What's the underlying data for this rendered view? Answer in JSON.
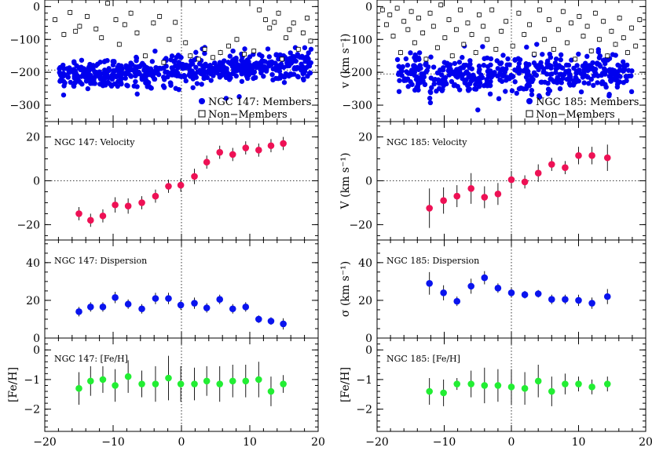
{
  "colors": {
    "members": "#0000ee",
    "velocity": "#ee1155",
    "dispersion": "#0a14ee",
    "metallicity": "#22ee33",
    "errorbar": "#000000",
    "axis": "#000000"
  },
  "x_ticks": [
    "−20",
    "−10",
    "0",
    "10",
    "20"
  ],
  "chart_data": [
    {
      "type": "scatter",
      "galaxy": "NGC 147",
      "panel": "radial-velocity",
      "ylabel": "",
      "xlim": [
        -20,
        20
      ],
      "ylim": [
        -350,
        20
      ],
      "yticks": [
        0,
        -100,
        -200,
        -300
      ],
      "legend": [
        "NGC 147: Members",
        "Non−Members"
      ],
      "legend_position": "bottom-right",
      "member_band": {
        "xmin": -18,
        "xmax": 19,
        "center": -193,
        "spread": 22,
        "slope": 0.9,
        "count": 620
      },
      "nonmember_points": [
        [
          -18.5,
          -40
        ],
        [
          -17.2,
          -85
        ],
        [
          -16.3,
          -18
        ],
        [
          -15.5,
          -75
        ],
        [
          -14.9,
          -60
        ],
        [
          -13.8,
          -30
        ],
        [
          -12.5,
          -68
        ],
        [
          -11.7,
          -95
        ],
        [
          -10.8,
          10
        ],
        [
          -9.6,
          -40
        ],
        [
          -9.1,
          -115
        ],
        [
          -8.3,
          -55
        ],
        [
          -7.4,
          -20
        ],
        [
          -6.5,
          -80
        ],
        [
          -5.3,
          -150
        ],
        [
          -4.1,
          -50
        ],
        [
          -3.2,
          -30
        ],
        [
          -2.6,
          -170
        ],
        [
          -1.8,
          -100
        ],
        [
          -0.9,
          -48
        ],
        [
          0.6,
          -110
        ],
        [
          1.3,
          -150
        ],
        [
          2.5,
          -160
        ],
        [
          3.4,
          -130
        ],
        [
          4.6,
          -155
        ],
        [
          5.7,
          -140
        ],
        [
          6.9,
          -120
        ],
        [
          8.1,
          -100
        ],
        [
          9.2,
          -145
        ],
        [
          10.6,
          -135
        ],
        [
          11.4,
          -10
        ],
        [
          12.3,
          -40
        ],
        [
          12.9,
          -65
        ],
        [
          13.6,
          -48
        ],
        [
          14.2,
          -20
        ],
        [
          14.7,
          -160
        ],
        [
          15.3,
          -95
        ],
        [
          15.8,
          -70
        ],
        [
          16.4,
          -50
        ],
        [
          17.1,
          -130
        ],
        [
          17.8,
          -80
        ],
        [
          18.4,
          -35
        ],
        [
          18.9,
          -105
        ]
      ]
    },
    {
      "type": "scatter",
      "galaxy": "NGC 147",
      "panel": "velocity",
      "title": "NGC 147: Velocity",
      "ylabel": "",
      "xlim": [
        -20,
        20
      ],
      "ylim": [
        -27,
        27
      ],
      "yticks": [
        20,
        0,
        -20
      ],
      "points": [
        {
          "x": -15.0,
          "y": -15.0,
          "err": 3
        },
        {
          "x": -13.3,
          "y": -18.0,
          "err": 3
        },
        {
          "x": -11.5,
          "y": -16.0,
          "err": 3
        },
        {
          "x": -9.7,
          "y": -11.0,
          "err": 3.5
        },
        {
          "x": -7.8,
          "y": -11.5,
          "err": 3.5
        },
        {
          "x": -5.8,
          "y": -10.0,
          "err": 3
        },
        {
          "x": -3.8,
          "y": -7.0,
          "err": 3
        },
        {
          "x": -1.9,
          "y": -2.5,
          "err": 3
        },
        {
          "x": -0.1,
          "y": -2.0,
          "err": 3
        },
        {
          "x": 1.9,
          "y": 2.0,
          "err": 3.5
        },
        {
          "x": 3.7,
          "y": 8.5,
          "err": 3
        },
        {
          "x": 5.6,
          "y": 13.0,
          "err": 3
        },
        {
          "x": 7.5,
          "y": 12.0,
          "err": 3
        },
        {
          "x": 9.4,
          "y": 15.0,
          "err": 3
        },
        {
          "x": 11.3,
          "y": 14.0,
          "err": 3
        },
        {
          "x": 13.1,
          "y": 16.0,
          "err": 3
        },
        {
          "x": 14.9,
          "y": 17.0,
          "err": 3
        }
      ]
    },
    {
      "type": "scatter",
      "galaxy": "NGC 147",
      "panel": "dispersion",
      "title": "NGC 147: Dispersion",
      "ylabel": "",
      "xlim": [
        -20,
        20
      ],
      "ylim": [
        0,
        52
      ],
      "yticks": [
        40,
        20,
        0
      ],
      "points": [
        {
          "x": -15.0,
          "y": 14.0,
          "err": 2.5
        },
        {
          "x": -13.3,
          "y": 16.5,
          "err": 2.5
        },
        {
          "x": -11.5,
          "y": 16.5,
          "err": 2.5
        },
        {
          "x": -9.7,
          "y": 21.5,
          "err": 3
        },
        {
          "x": -7.8,
          "y": 18.0,
          "err": 2.5
        },
        {
          "x": -5.8,
          "y": 15.5,
          "err": 2.5
        },
        {
          "x": -3.8,
          "y": 21.0,
          "err": 3
        },
        {
          "x": -1.9,
          "y": 21.0,
          "err": 3
        },
        {
          "x": -0.1,
          "y": 17.5,
          "err": 2.5
        },
        {
          "x": 1.9,
          "y": 18.5,
          "err": 3
        },
        {
          "x": 3.7,
          "y": 16.0,
          "err": 2.5
        },
        {
          "x": 5.6,
          "y": 20.5,
          "err": 2.5
        },
        {
          "x": 7.5,
          "y": 15.5,
          "err": 2.5
        },
        {
          "x": 9.4,
          "y": 16.5,
          "err": 2.5
        },
        {
          "x": 11.3,
          "y": 10.0,
          "err": 2
        },
        {
          "x": 13.1,
          "y": 9.0,
          "err": 2
        },
        {
          "x": 14.9,
          "y": 7.5,
          "err": 3
        }
      ]
    },
    {
      "type": "scatter",
      "galaxy": "NGC 147",
      "panel": "metallicity",
      "title": "NGC 147: [Fe/H]",
      "ylabel": "[Fe/H]",
      "xlim": [
        -20,
        20
      ],
      "ylim": [
        -2.75,
        0.4
      ],
      "yticks": [
        0,
        -1,
        -2
      ],
      "points": [
        {
          "x": -15.0,
          "y": -1.3,
          "err": 0.55
        },
        {
          "x": -13.3,
          "y": -1.05,
          "err": 0.5
        },
        {
          "x": -11.5,
          "y": -1.0,
          "err": 0.45
        },
        {
          "x": -9.7,
          "y": -1.2,
          "err": 0.55
        },
        {
          "x": -7.8,
          "y": -0.9,
          "err": 0.55
        },
        {
          "x": -5.8,
          "y": -1.15,
          "err": 0.45
        },
        {
          "x": -3.8,
          "y": -1.15,
          "err": 0.6
        },
        {
          "x": -1.9,
          "y": -0.95,
          "err": 0.75
        },
        {
          "x": -0.1,
          "y": -1.15,
          "err": 0.6
        },
        {
          "x": 1.9,
          "y": -1.15,
          "err": 0.55
        },
        {
          "x": 3.7,
          "y": -1.05,
          "err": 0.5
        },
        {
          "x": 5.6,
          "y": -1.15,
          "err": 0.6
        },
        {
          "x": 7.5,
          "y": -1.05,
          "err": 0.55
        },
        {
          "x": 9.4,
          "y": -1.05,
          "err": 0.55
        },
        {
          "x": 11.3,
          "y": -1.0,
          "err": 0.6
        },
        {
          "x": 13.1,
          "y": -1.4,
          "err": 0.5
        },
        {
          "x": 14.9,
          "y": -1.15,
          "err": 0.3
        }
      ]
    },
    {
      "type": "scatter",
      "galaxy": "NGC 185",
      "panel": "radial-velocity",
      "ylabel": "v  (km s⁻¹)",
      "xlim": [
        -20,
        20
      ],
      "ylim": [
        -350,
        20
      ],
      "yticks": [
        0,
        -100,
        -200,
        -300
      ],
      "legend": [
        "NGC 185: Members",
        "Non−Members"
      ],
      "legend_position": "bottom-right",
      "member_band": {
        "xmin": -17,
        "xmax": 18,
        "center": -205,
        "spread": 28,
        "slope": 0.3,
        "count": 480
      },
      "nonmember_points": [
        [
          -19.2,
          -10
        ],
        [
          -18.6,
          -55
        ],
        [
          -18.1,
          -25
        ],
        [
          -17.6,
          -90
        ],
        [
          -17.0,
          -5
        ],
        [
          -16.5,
          -140
        ],
        [
          -16.0,
          -45
        ],
        [
          -15.4,
          -70
        ],
        [
          -14.9,
          -15
        ],
        [
          -14.4,
          -110
        ],
        [
          -13.8,
          -35
        ],
        [
          -13.2,
          -80
        ],
        [
          -12.7,
          -160
        ],
        [
          -12.1,
          -20
        ],
        [
          -11.6,
          -60
        ],
        [
          -11.0,
          -125
        ],
        [
          -10.5,
          5
        ],
        [
          -9.9,
          -95
        ],
        [
          -9.3,
          -40
        ],
        [
          -8.8,
          -150
        ],
        [
          -8.2,
          -70
        ],
        [
          -7.6,
          -10
        ],
        [
          -7.1,
          -115
        ],
        [
          -6.5,
          -50
        ],
        [
          -5.9,
          -85
        ],
        [
          -5.3,
          -140
        ],
        [
          -4.8,
          -25
        ],
        [
          -4.2,
          -60
        ],
        [
          -3.6,
          -100
        ],
        [
          -2.9,
          -10
        ],
        [
          -2.3,
          -130
        ],
        [
          -1.5,
          -75
        ],
        [
          -0.8,
          -45
        ],
        [
          0.2,
          -120
        ],
        [
          1.1,
          -20
        ],
        [
          1.9,
          -85
        ],
        [
          2.7,
          -55
        ],
        [
          3.4,
          -145
        ],
        [
          4.2,
          -10
        ],
        [
          4.9,
          -100
        ],
        [
          5.6,
          -40
        ],
        [
          6.3,
          -130
        ],
        [
          7.0,
          -70
        ],
        [
          7.7,
          -15
        ],
        [
          8.3,
          -110
        ],
        [
          8.9,
          -50
        ],
        [
          9.5,
          -160
        ],
        [
          10.1,
          -30
        ],
        [
          10.7,
          -90
        ],
        [
          11.3,
          -60
        ],
        [
          11.9,
          -135
        ],
        [
          12.5,
          -20
        ],
        [
          13.1,
          -100
        ],
        [
          13.7,
          -45
        ],
        [
          14.3,
          -150
        ],
        [
          14.9,
          -75
        ],
        [
          15.5,
          -115
        ],
        [
          16.1,
          -35
        ],
        [
          16.7,
          -95
        ],
        [
          17.3,
          -140
        ],
        [
          17.9,
          -65
        ],
        [
          18.5,
          -120
        ],
        [
          19.1,
          -40
        ]
      ]
    },
    {
      "type": "scatter",
      "galaxy": "NGC 185",
      "panel": "velocity",
      "title": "NGC 185: Velocity",
      "ylabel": "V  (km s⁻¹)",
      "xlim": [
        -20,
        20
      ],
      "ylim": [
        -27,
        27
      ],
      "yticks": [
        20,
        0,
        -20
      ],
      "points": [
        {
          "x": -12.2,
          "y": -12.5,
          "err": 9
        },
        {
          "x": -10.1,
          "y": -9.0,
          "err": 6
        },
        {
          "x": -8.1,
          "y": -7.0,
          "err": 5
        },
        {
          "x": -6.0,
          "y": -3.5,
          "err": 7
        },
        {
          "x": -4.0,
          "y": -7.5,
          "err": 5
        },
        {
          "x": -2.0,
          "y": -6.0,
          "err": 5
        },
        {
          "x": 0.0,
          "y": 0.5,
          "err": 4
        },
        {
          "x": 2.0,
          "y": -0.5,
          "err": 3
        },
        {
          "x": 4.0,
          "y": 3.5,
          "err": 4
        },
        {
          "x": 6.0,
          "y": 7.5,
          "err": 3
        },
        {
          "x": 8.0,
          "y": 6.0,
          "err": 3
        },
        {
          "x": 10.0,
          "y": 11.5,
          "err": 4
        },
        {
          "x": 12.0,
          "y": 11.5,
          "err": 4
        },
        {
          "x": 14.3,
          "y": 10.5,
          "err": 6
        }
      ]
    },
    {
      "type": "scatter",
      "galaxy": "NGC 185",
      "panel": "dispersion",
      "title": "NGC 185: Dispersion",
      "ylabel": "σ  (km s⁻¹)",
      "xlim": [
        -20,
        20
      ],
      "ylim": [
        0,
        52
      ],
      "yticks": [
        40,
        20,
        0
      ],
      "points": [
        {
          "x": -12.2,
          "y": 29.0,
          "err": 6
        },
        {
          "x": -10.1,
          "y": 24.0,
          "err": 4
        },
        {
          "x": -8.1,
          "y": 19.5,
          "err": 2.5
        },
        {
          "x": -6.0,
          "y": 27.5,
          "err": 4
        },
        {
          "x": -4.0,
          "y": 32.0,
          "err": 3.5
        },
        {
          "x": -2.0,
          "y": 26.5,
          "err": 2.5
        },
        {
          "x": 0.0,
          "y": 24.0,
          "err": 2.5
        },
        {
          "x": 2.0,
          "y": 23.0,
          "err": 2
        },
        {
          "x": 4.0,
          "y": 23.5,
          "err": 2
        },
        {
          "x": 6.0,
          "y": 20.5,
          "err": 2.5
        },
        {
          "x": 8.0,
          "y": 20.5,
          "err": 2.5
        },
        {
          "x": 10.0,
          "y": 20.0,
          "err": 3
        },
        {
          "x": 12.0,
          "y": 18.5,
          "err": 3
        },
        {
          "x": 14.3,
          "y": 22.0,
          "err": 4
        }
      ]
    },
    {
      "type": "scatter",
      "galaxy": "NGC 185",
      "panel": "metallicity",
      "title": "NGC 185: [Fe/H]",
      "ylabel": "[Fe/H]",
      "xlim": [
        -20,
        20
      ],
      "ylim": [
        -2.75,
        0.4
      ],
      "yticks": [
        0,
        -1,
        -2
      ],
      "points": [
        {
          "x": -12.2,
          "y": -1.4,
          "err": 0.45
        },
        {
          "x": -10.1,
          "y": -1.45,
          "err": 0.45
        },
        {
          "x": -8.1,
          "y": -1.15,
          "err": 0.2
        },
        {
          "x": -6.0,
          "y": -1.15,
          "err": 0.45
        },
        {
          "x": -4.0,
          "y": -1.2,
          "err": 0.6
        },
        {
          "x": -2.0,
          "y": -1.2,
          "err": 0.55
        },
        {
          "x": 0.0,
          "y": -1.25,
          "err": 0.6
        },
        {
          "x": 2.0,
          "y": -1.3,
          "err": 0.55
        },
        {
          "x": 4.0,
          "y": -1.05,
          "err": 0.55
        },
        {
          "x": 6.0,
          "y": -1.4,
          "err": 0.5
        },
        {
          "x": 8.0,
          "y": -1.15,
          "err": 0.35
        },
        {
          "x": 10.0,
          "y": -1.15,
          "err": 0.25
        },
        {
          "x": 12.0,
          "y": -1.25,
          "err": 0.25
        },
        {
          "x": 14.3,
          "y": -1.15,
          "err": 0.25
        }
      ]
    }
  ]
}
